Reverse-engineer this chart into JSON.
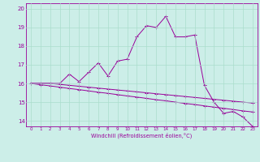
{
  "xlabel": "Windchill (Refroidissement éolien,°C)",
  "bg_color": "#cceee8",
  "grid_color": "#aaddcc",
  "line_color": "#990099",
  "x": [
    0,
    1,
    2,
    3,
    4,
    5,
    6,
    7,
    8,
    9,
    10,
    11,
    12,
    13,
    14,
    15,
    16,
    17,
    18,
    19,
    20,
    21,
    22,
    23
  ],
  "series1": [
    16.0,
    16.0,
    16.0,
    16.0,
    16.5,
    16.1,
    16.6,
    17.1,
    16.4,
    17.2,
    17.3,
    18.5,
    19.1,
    19.0,
    19.6,
    18.5,
    18.5,
    18.6,
    15.9,
    15.0,
    14.4,
    14.5,
    14.2,
    13.7
  ],
  "series2": [
    16.0,
    16.0,
    16.0,
    15.95,
    15.9,
    15.85,
    15.8,
    15.75,
    15.7,
    15.65,
    15.6,
    15.55,
    15.5,
    15.45,
    15.4,
    15.35,
    15.3,
    15.25,
    15.2,
    15.15,
    15.1,
    15.05,
    15.0,
    14.95
  ],
  "series3": [
    16.0,
    15.93,
    15.87,
    15.8,
    15.73,
    15.67,
    15.6,
    15.53,
    15.47,
    15.4,
    15.33,
    15.27,
    15.2,
    15.13,
    15.07,
    15.0,
    14.93,
    14.87,
    14.8,
    14.73,
    14.67,
    14.6,
    14.53,
    14.47
  ],
  "ylim": [
    13.7,
    20.3
  ],
  "yticks": [
    14,
    15,
    16,
    17,
    18,
    19,
    20
  ],
  "xticks": [
    0,
    1,
    2,
    3,
    4,
    5,
    6,
    7,
    8,
    9,
    10,
    11,
    12,
    13,
    14,
    15,
    16,
    17,
    18,
    19,
    20,
    21,
    22,
    23
  ]
}
